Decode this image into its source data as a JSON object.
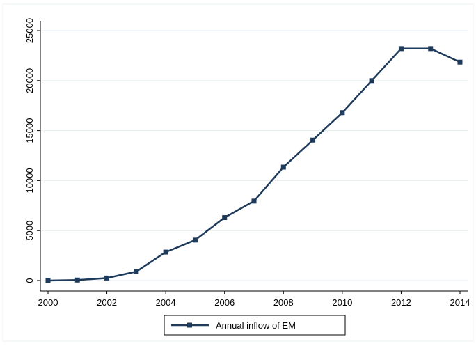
{
  "chart_data": {
    "type": "line",
    "title": "",
    "xlabel": "",
    "ylabel": "",
    "x": [
      2000,
      2001,
      2002,
      2003,
      2004,
      2005,
      2006,
      2007,
      2008,
      2009,
      2010,
      2011,
      2012,
      2013,
      2014
    ],
    "series": [
      {
        "name": "Annual inflow of EM",
        "values": [
          0,
          50,
          250,
          900,
          2850,
          4050,
          6300,
          7950,
          11350,
          14050,
          16800,
          20000,
          23200,
          23200,
          21850
        ],
        "color": "#1f3b5c",
        "marker": "square"
      }
    ],
    "xticks": [
      2000,
      2002,
      2004,
      2006,
      2008,
      2010,
      2012,
      2014
    ],
    "xtick_labels": [
      "2000",
      "2002",
      "2004",
      "2006",
      "2008",
      "2010",
      "2012",
      "2014"
    ],
    "yticks": [
      0,
      5000,
      10000,
      15000,
      20000,
      25000
    ],
    "ytick_labels": [
      "0",
      "5000",
      "10000",
      "15000",
      "20000",
      "25000"
    ],
    "xlim": [
      2000,
      2014
    ],
    "ylim": [
      0,
      25000
    ],
    "grid": true,
    "grid_axis": "y",
    "legend_position": "bottom-center",
    "colors": {
      "line": "#1f3b5c",
      "grid": "#e6edf0",
      "axis": "#000000",
      "background": "#ffffff"
    }
  }
}
